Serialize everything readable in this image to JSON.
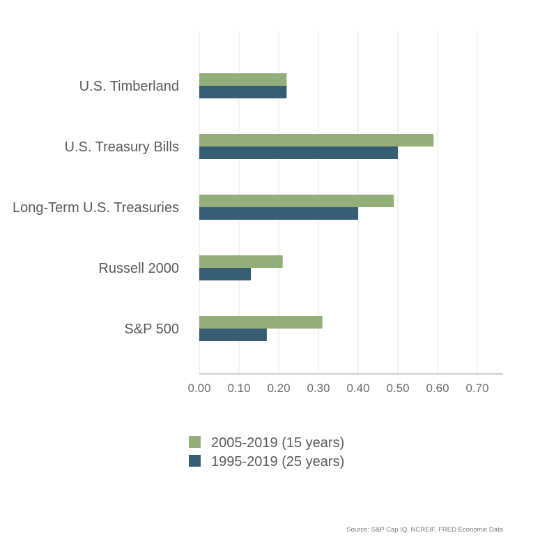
{
  "chart_data": {
    "type": "bar",
    "orientation": "horizontal",
    "categories": [
      "U.S. Timberland",
      "U.S. Treasury Bills",
      "Long-Term U.S. Treasuries",
      "Russell 2000",
      "S&P 500"
    ],
    "series": [
      {
        "name": "2005-2019 (15 years)",
        "color": "#93ae79",
        "values": [
          0.22,
          0.59,
          0.49,
          0.21,
          0.31
        ]
      },
      {
        "name": "1995-2019 (25 years)",
        "color": "#365d74",
        "values": [
          0.22,
          0.5,
          0.4,
          0.13,
          0.17
        ]
      }
    ],
    "xlim": [
      0,
      0.75
    ],
    "xticks": [
      "0.00",
      "0.10",
      "0.20",
      "0.30",
      "0.40",
      "0.50",
      "0.60",
      "0.70"
    ],
    "grid": true,
    "legend_position": "bottom-center"
  },
  "source_note": "Source: S&P Cap IQ, NCREIF, FRED Economic Data"
}
